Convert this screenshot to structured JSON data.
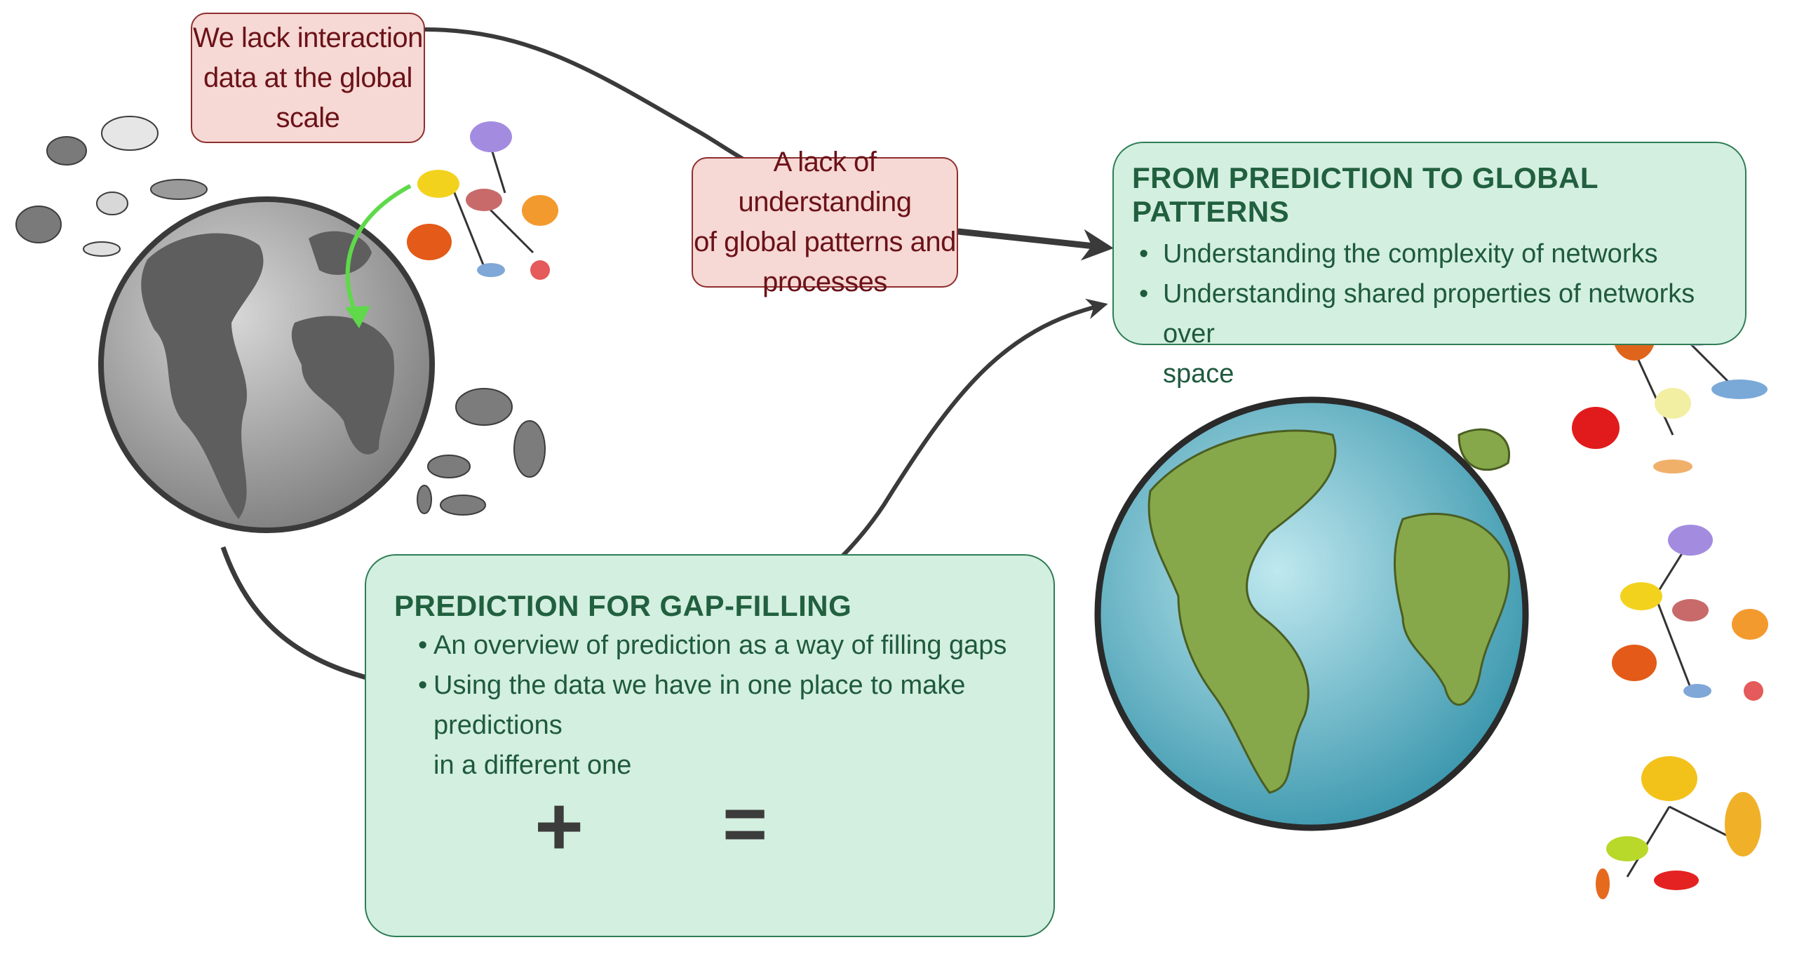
{
  "boxes": {
    "lack_data": {
      "lines": [
        "We lack interaction",
        "data at the global",
        "scale"
      ]
    },
    "lack_understanding": {
      "lines": [
        "A lack of understanding",
        "of global patterns and",
        "processes"
      ]
    },
    "global_patterns": {
      "title": "FROM PREDICTION TO GLOBAL PATTERNS",
      "bullets": [
        "Understanding the complexity of networks",
        "Understanding shared properties of networks over",
        "space"
      ]
    },
    "gap_filling": {
      "title": "PREDICTION FOR GAP-FILLING",
      "bullets": [
        "An overview of prediction as a way of filling gaps",
        "Using the data we have in one place to make predictions",
        "in a different one"
      ]
    },
    "equation": {
      "plus": "+",
      "equals": "="
    }
  },
  "colors": {
    "red_fill": "#f6d8d4",
    "red_border": "#8e2e2e",
    "red_text": "#6b1218",
    "green_fill": "#d3efe0",
    "green_border": "#2f7d55",
    "green_text": "#1f5a3d",
    "arrow": "#3a3a3a",
    "highlight_arrow": "#5fd94a",
    "globe_grey_ocean": "#8f8f8f",
    "globe_grey_land": "#5a5a5a",
    "globe_blue_ocean": "#4fb3c9",
    "globe_green_land": "#86a84a"
  },
  "icons": [
    "gray-globe-icon",
    "color-globe-icon",
    "arctic-animal-cluster-icon",
    "african-animal-cluster-icon",
    "food-web-icon",
    "green-arrow-icon"
  ]
}
